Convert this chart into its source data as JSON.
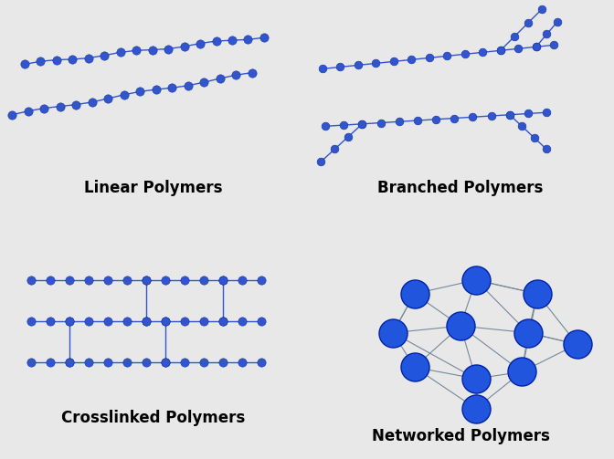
{
  "background_color": "#e8e8e8",
  "node_color_small": "#3355cc",
  "node_color_large": "#2255ee",
  "node_edge_color": "#1133aa",
  "line_color": "#3355cc",
  "line_color_network": "#778899",
  "labels": {
    "linear": "Linear Polymers",
    "branched": "Branched Polymers",
    "crosslinked": "Crosslinked Polymers",
    "networked": "Networked Polymers"
  },
  "label_fontsize": 12,
  "label_fontweight": "bold"
}
